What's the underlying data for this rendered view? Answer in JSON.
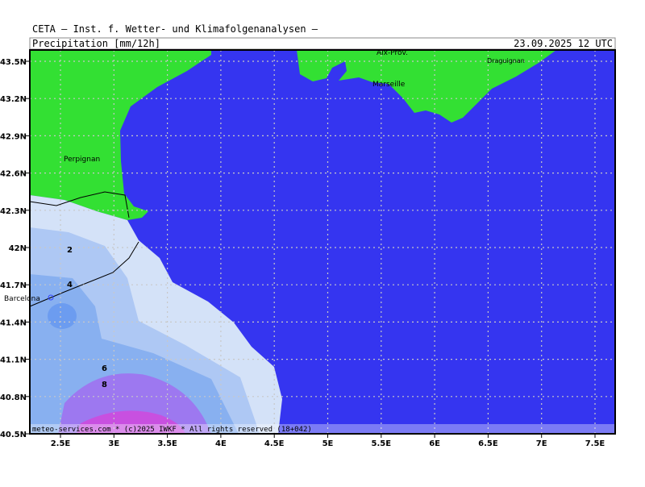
{
  "header": {
    "org": "CETA — Inst. f. Wetter- und Klimafolgenanalysen —",
    "field": "Precipitation [mm/12h]",
    "valid": "23.09.2025 12 UTC"
  },
  "map": {
    "lat_labels": [
      "43.5N",
      "43.2N",
      "42.9N",
      "42.6N",
      "42.3N",
      "42N",
      "41.7N",
      "41.4N",
      "41.1N",
      "40.8N",
      "40.5N"
    ],
    "lon_labels": [
      "2.5E",
      "3E",
      "3.5E",
      "4E",
      "4.5E",
      "5E",
      "5.5E",
      "6E",
      "6.5E",
      "7E",
      "7.5E"
    ],
    "places": [
      {
        "label": "Aix-Prov."
      },
      {
        "label": "Draguignan"
      },
      {
        "label": "Marseille"
      },
      {
        "label": "Perpignan"
      },
      {
        "label": "Barcelona"
      }
    ],
    "contour_labels": [
      "2",
      "4",
      "6",
      "8"
    ]
  },
  "footer": {
    "text": "meteo-services.com * (c)2025 IWKF * All rights reserved (18+042)"
  }
}
